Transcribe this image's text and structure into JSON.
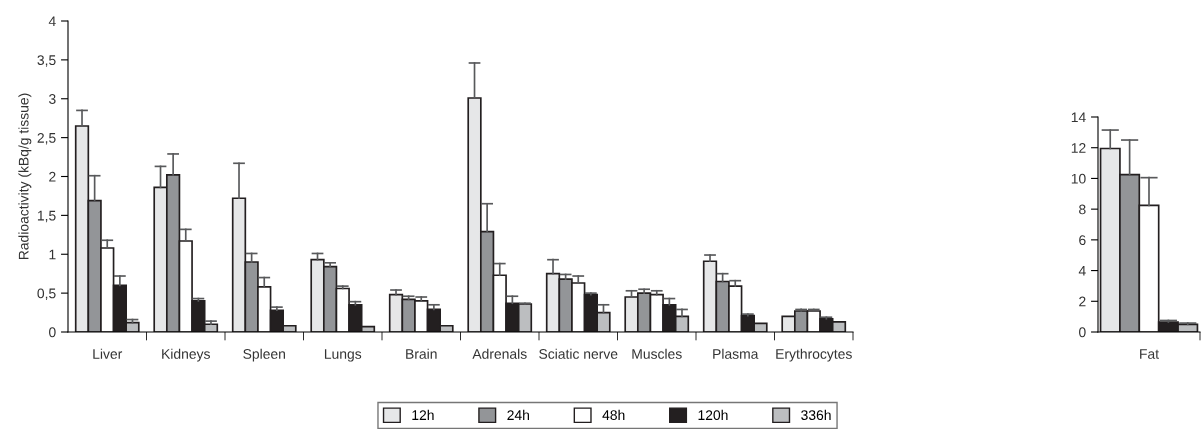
{
  "chart_data": [
    {
      "type": "bar",
      "ylabel": "Radioactivity (kBq/g tissue)",
      "categories": [
        "Liver",
        "Kidneys",
        "Spleen",
        "Lungs",
        "Brain",
        "Adrenals",
        "Sciatic nerve",
        "Muscles",
        "Plasma",
        "Erythrocytes"
      ],
      "ylim": [
        0,
        4
      ],
      "yticks": [
        0,
        {
          "value": 0.5,
          "label": "0,5"
        },
        1,
        {
          "value": 1.5,
          "label": "1,5"
        },
        2,
        {
          "value": 2.5,
          "label": "2,5"
        },
        3,
        {
          "value": 3.5,
          "label": "3,5"
        },
        4
      ],
      "grid": false,
      "legend": "bottom",
      "series": [
        {
          "name": "12h",
          "color": "#e6e7e8",
          "values": [
            2.65,
            1.86,
            1.72,
            0.93,
            0.48,
            3.01,
            0.75,
            0.45,
            0.91,
            0.2
          ],
          "errors": [
            [
              2.65,
              2.85
            ],
            [
              1.86,
              2.13
            ],
            [
              1.72,
              2.17
            ],
            [
              0.93,
              1.01
            ],
            [
              0.48,
              0.54
            ],
            [
              3.01,
              3.46
            ],
            [
              0.75,
              0.93
            ],
            [
              0.45,
              0.53
            ],
            [
              0.91,
              0.99
            ],
            null
          ]
        },
        {
          "name": "24h",
          "color": "#939598",
          "values": [
            1.69,
            2.02,
            0.9,
            0.84,
            0.42,
            1.29,
            0.68,
            0.5,
            0.65,
            0.27
          ],
          "errors": [
            [
              1.69,
              2.01
            ],
            [
              2.02,
              2.29
            ],
            [
              0.9,
              1.01
            ],
            [
              0.84,
              0.89
            ],
            [
              0.42,
              0.46
            ],
            [
              1.29,
              1.65
            ],
            [
              0.68,
              0.74
            ],
            [
              0.5,
              0.55
            ],
            [
              0.65,
              0.75
            ],
            [
              0.27,
              0.29
            ]
          ]
        },
        {
          "name": "48h",
          "color": "#ffffff",
          "values": [
            1.08,
            1.17,
            0.58,
            0.56,
            0.4,
            0.73,
            0.63,
            0.48,
            0.59,
            0.27
          ],
          "errors": [
            [
              1.08,
              1.18
            ],
            [
              1.17,
              1.32
            ],
            [
              0.58,
              0.7
            ],
            [
              0.56,
              0.59
            ],
            [
              0.4,
              0.45
            ],
            [
              0.73,
              0.88
            ],
            [
              0.63,
              0.72
            ],
            [
              0.48,
              0.53
            ],
            [
              0.59,
              0.66
            ],
            [
              0.27,
              0.29
            ]
          ]
        },
        {
          "name": "120h",
          "color": "#231f20",
          "values": [
            0.6,
            0.4,
            0.28,
            0.35,
            0.29,
            0.37,
            0.48,
            0.35,
            0.21,
            0.17
          ],
          "errors": [
            [
              0.6,
              0.72
            ],
            [
              0.4,
              0.43
            ],
            [
              0.28,
              0.32
            ],
            [
              0.35,
              0.39
            ],
            [
              0.29,
              0.35
            ],
            [
              0.37,
              0.46
            ],
            [
              0.48,
              0.5
            ],
            [
              0.35,
              0.43
            ],
            [
              0.21,
              0.23
            ],
            [
              0.17,
              0.19
            ]
          ]
        },
        {
          "name": "336h",
          "color": "#bcbec0",
          "values": [
            0.12,
            0.1,
            0.08,
            0.07,
            0.08,
            0.36,
            0.25,
            0.2,
            0.11,
            0.13
          ],
          "errors": [
            [
              0.12,
              0.16
            ],
            [
              0.1,
              0.14
            ],
            null,
            null,
            null,
            [
              0.36,
              0.37
            ],
            [
              0.25,
              0.35
            ],
            [
              0.2,
              0.29
            ],
            null,
            null
          ]
        }
      ]
    },
    {
      "type": "bar",
      "categories": [
        "Fat"
      ],
      "ylim": [
        0,
        14
      ],
      "yticks": [
        0,
        2,
        4,
        6,
        8,
        10,
        12,
        14
      ],
      "grid": false,
      "series": [
        {
          "color": "#e6e7e8",
          "values": [
            11.95
          ],
          "errors": [
            [
              11.95,
              13.15
            ]
          ]
        },
        {
          "color": "#939598",
          "values": [
            10.25
          ],
          "errors": [
            [
              10.25,
              12.5
            ]
          ]
        },
        {
          "color": "#ffffff",
          "values": [
            8.25
          ],
          "errors": [
            [
              8.25,
              10.05
            ]
          ]
        },
        {
          "color": "#231f20",
          "values": [
            0.65
          ],
          "errors": [
            [
              0.65,
              0.75
            ]
          ]
        },
        {
          "color": "#bcbec0",
          "values": [
            0.5
          ],
          "errors": [
            [
              0.5,
              0.58
            ]
          ]
        }
      ]
    }
  ]
}
